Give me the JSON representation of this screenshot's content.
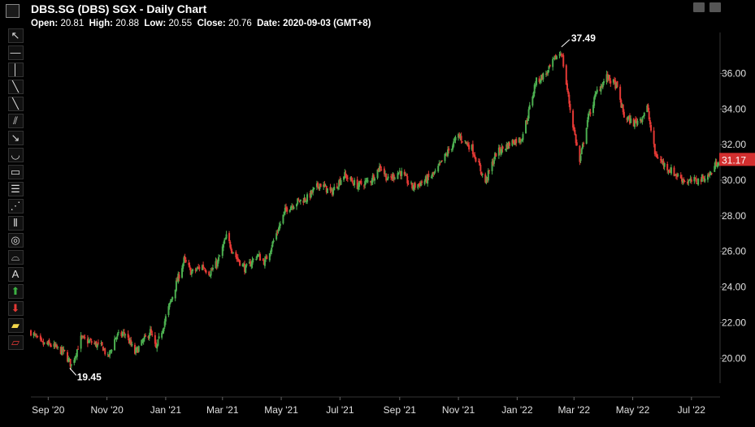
{
  "header": {
    "title": "DBS.SG (DBS) SGX - Daily Chart",
    "open_label": "Open:",
    "open_value": "20.81",
    "high_label": "High:",
    "high_value": "20.88",
    "low_label": "Low:",
    "low_value": "20.55",
    "close_label": "Close:",
    "close_value": "20.76",
    "date_label": "Date:",
    "date_value": "2020-09-03 (GMT+8)"
  },
  "toolbar": {
    "tools": [
      "cursor-icon",
      "horizontal-line-icon",
      "vertical-line-icon",
      "trend-line-icon",
      "ray-line-icon",
      "parallel-channel-icon",
      "arrow-line-icon",
      "arc-icon",
      "rectangle-icon",
      "fibonacci-retracement-icon",
      "fan-icon",
      "fibonacci-time-icon",
      "circles-icon",
      "fibonacci-arcs-icon",
      "text-icon",
      "buy-arrow-icon",
      "sell-arrow-icon",
      "highlighter-icon",
      "eraser-icon"
    ]
  },
  "colors": {
    "up": "#4caf50",
    "down": "#e53935",
    "axis_text": "#e0e0e0",
    "price_tag": "#d32f2f"
  },
  "chart_data": {
    "type": "candlestick",
    "title": "DBS.SG (DBS) SGX - Daily Chart",
    "x_tick_labels": [
      "Sep '20",
      "Nov '20",
      "Jan '21",
      "Mar '21",
      "May '21",
      "Jul '21",
      "Sep '21",
      "Nov '21",
      "Jan '22",
      "Mar '22",
      "May '22",
      "Jul '22"
    ],
    "y_tick_labels": [
      "20.00",
      "22.00",
      "24.00",
      "26.00",
      "28.00",
      "30.00",
      "32.00",
      "34.00",
      "36.00"
    ],
    "y_range": [
      18.6,
      38.3
    ],
    "x_range": [
      "2020-08-14",
      "2022-07-29"
    ],
    "high_marker": {
      "label": "37.49",
      "value": 37.49,
      "date": "2022-02-16"
    },
    "low_marker": {
      "label": "19.45",
      "value": 19.45,
      "date": "2020-09-25"
    },
    "last_price": {
      "label": "31.17",
      "value": 31.17
    },
    "close_path": [
      [
        "2020-08-14",
        21.5
      ],
      [
        "2020-08-25",
        20.8
      ],
      [
        "2020-09-03",
        20.76
      ],
      [
        "2020-09-18",
        20.3
      ],
      [
        "2020-09-25",
        19.6
      ],
      [
        "2020-10-05",
        21.1
      ],
      [
        "2020-10-15",
        20.9
      ],
      [
        "2020-10-28",
        20.6
      ],
      [
        "2020-11-02",
        20.0
      ],
      [
        "2020-11-10",
        21.2
      ],
      [
        "2020-11-20",
        21.4
      ],
      [
        "2020-11-30",
        20.3
      ],
      [
        "2020-12-08",
        20.9
      ],
      [
        "2020-12-16",
        21.5
      ],
      [
        "2020-12-22",
        20.5
      ],
      [
        "2021-01-04",
        22.8
      ],
      [
        "2021-01-12",
        24.2
      ],
      [
        "2021-01-20",
        25.5
      ],
      [
        "2021-01-28",
        24.8
      ],
      [
        "2021-02-08",
        25.2
      ],
      [
        "2021-02-16",
        24.8
      ],
      [
        "2021-02-24",
        25.4
      ],
      [
        "2021-03-05",
        26.8
      ],
      [
        "2021-03-15",
        25.7
      ],
      [
        "2021-03-25",
        25.0
      ],
      [
        "2021-04-06",
        25.8
      ],
      [
        "2021-04-14",
        25.4
      ],
      [
        "2021-04-26",
        27.0
      ],
      [
        "2021-05-06",
        28.4
      ],
      [
        "2021-05-18",
        28.8
      ],
      [
        "2021-05-28",
        29.0
      ],
      [
        "2021-06-10",
        29.8
      ],
      [
        "2021-06-22",
        29.3
      ],
      [
        "2021-07-05",
        30.3
      ],
      [
        "2021-07-19",
        29.7
      ],
      [
        "2021-08-02",
        30.0
      ],
      [
        "2021-08-12",
        30.8
      ],
      [
        "2021-08-20",
        30.0
      ],
      [
        "2021-09-01",
        30.5
      ],
      [
        "2021-09-14",
        29.6
      ],
      [
        "2021-09-28",
        30.0
      ],
      [
        "2021-10-08",
        30.4
      ],
      [
        "2021-10-20",
        31.5
      ],
      [
        "2021-11-01",
        32.5
      ],
      [
        "2021-11-15",
        31.8
      ],
      [
        "2021-11-29",
        29.9
      ],
      [
        "2021-12-10",
        31.5
      ],
      [
        "2021-12-28",
        32.2
      ],
      [
        "2022-01-05",
        32.3
      ],
      [
        "2022-01-12",
        33.6
      ],
      [
        "2022-01-20",
        35.5
      ],
      [
        "2022-02-02",
        36.1
      ],
      [
        "2022-02-10",
        36.9
      ],
      [
        "2022-02-16",
        37.2
      ],
      [
        "2022-02-25",
        34.0
      ],
      [
        "2022-03-07",
        31.0
      ],
      [
        "2022-03-15",
        33.4
      ],
      [
        "2022-03-25",
        35.0
      ],
      [
        "2022-04-04",
        35.8
      ],
      [
        "2022-04-14",
        35.3
      ],
      [
        "2022-04-22",
        33.6
      ],
      [
        "2022-05-02",
        33.2
      ],
      [
        "2022-05-10",
        33.5
      ],
      [
        "2022-05-16",
        34.1
      ],
      [
        "2022-05-24",
        31.5
      ],
      [
        "2022-06-02",
        30.9
      ],
      [
        "2022-06-15",
        30.3
      ],
      [
        "2022-06-27",
        29.9
      ],
      [
        "2022-07-08",
        30.0
      ],
      [
        "2022-07-20",
        30.3
      ],
      [
        "2022-07-29",
        31.17
      ]
    ]
  }
}
